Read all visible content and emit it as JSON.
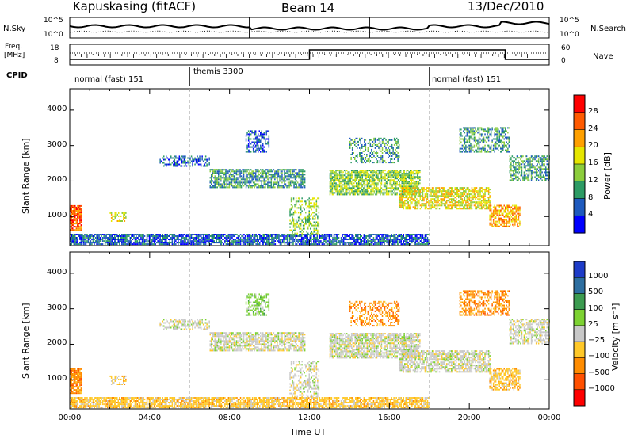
{
  "header": {
    "station": "Kapuskasing (fitACF)",
    "beam": "Beam 14",
    "date": "13/Dec/2010"
  },
  "top_panels": {
    "nsky_label": "N.Sky",
    "nsearch_label": "N.Search",
    "nsky_ticks": [
      "10^5",
      "10^0"
    ],
    "nsearch_ticks": [
      "10^5",
      "10^0"
    ],
    "freq_label_1": "Freq.",
    "freq_label_2": "[MHz]",
    "freq_ticks": [
      "18",
      "8"
    ],
    "nave_label": "Nave",
    "nave_ticks": [
      "60",
      "0"
    ],
    "cpid_label": "CPID",
    "cpid_segments": [
      {
        "label": "normal (fast) 151",
        "start_h": 0,
        "end_h": 6
      },
      {
        "label": "themis 3300",
        "start_h": 6,
        "end_h": 18
      },
      {
        "label": "normal (fast) 151",
        "start_h": 18,
        "end_h": 24
      }
    ]
  },
  "chart_data": [
    {
      "type": "heatmap",
      "name": "power",
      "ylabel": "Slant Range [km]",
      "y_ticks": [
        1000,
        2000,
        3000,
        4000
      ],
      "ylim": [
        180,
        4600
      ],
      "xlim": [
        0,
        24
      ],
      "colorbar_label": "Power [dB]",
      "colorbar_ticks": [
        "28",
        "24",
        "20",
        "16",
        "12",
        "8",
        "4"
      ],
      "colorbar_colors": [
        "#ff0000",
        "#ff5a00",
        "#ffa000",
        "#e6e600",
        "#8ccd3c",
        "#2d9b64",
        "#1e5abe",
        "#0000ff"
      ]
    },
    {
      "type": "heatmap",
      "name": "velocity",
      "ylabel": "Slant Range [km]",
      "xlabel": "Time UT",
      "y_ticks": [
        1000,
        2000,
        3000,
        4000
      ],
      "ylim": [
        180,
        4600
      ],
      "xlim": [
        0,
        24
      ],
      "x_ticks": [
        "00:00",
        "04:00",
        "08:00",
        "12:00",
        "16:00",
        "20:00",
        "00:00"
      ],
      "colorbar_label": "Velocity [m s⁻¹]",
      "colorbar_ticks": [
        "1000",
        "500",
        "100",
        "25",
        "−25",
        "−100",
        "−500",
        "−1000"
      ],
      "colorbar_colors": [
        "#1e3cc8",
        "#2d6ea0",
        "#3c9b50",
        "#7dd232",
        "#c8c8c8",
        "#ffc828",
        "#ff8c00",
        "#ff5000",
        "#ff0000"
      ]
    }
  ]
}
